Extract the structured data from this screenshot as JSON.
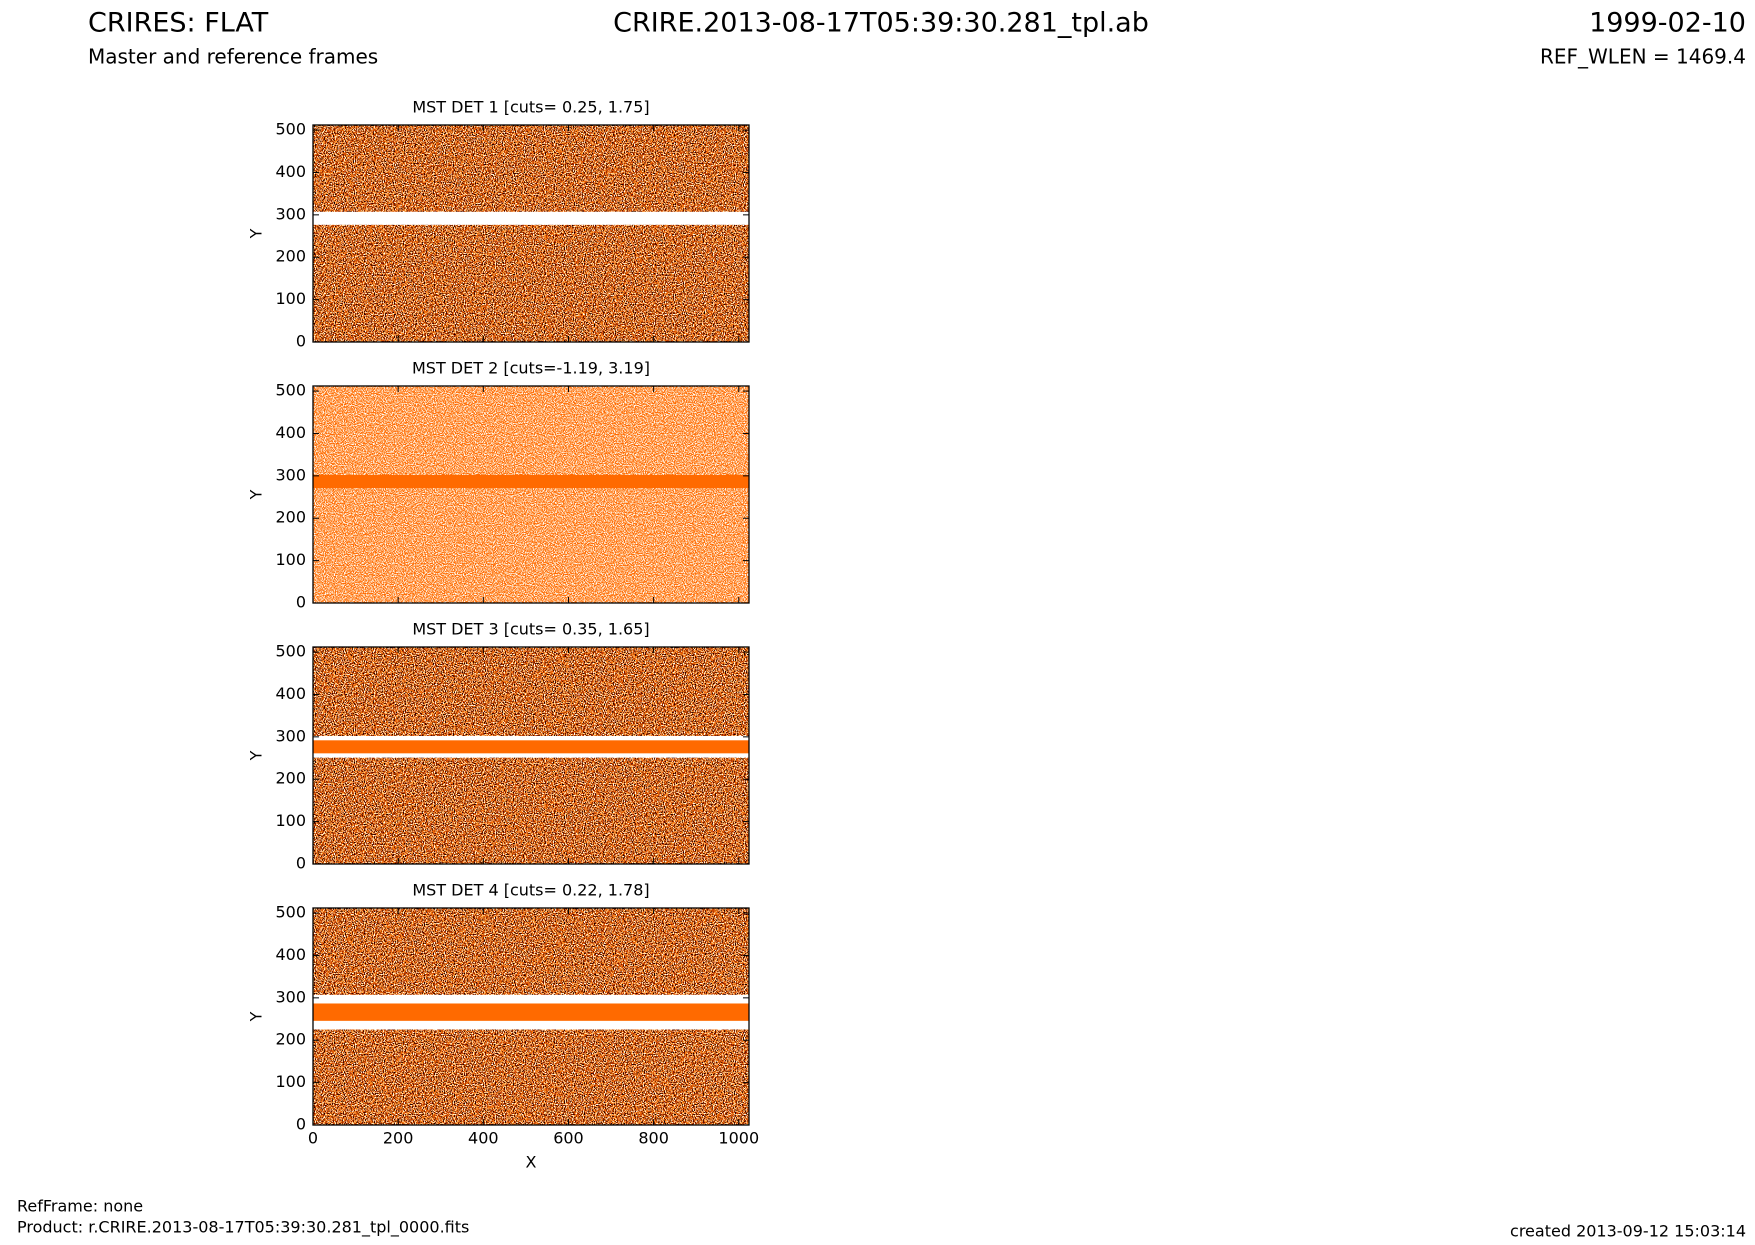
{
  "header": {
    "title": "CRIRES: FLAT",
    "subtitle": "Master and reference frames",
    "file": "CRIRE.2013-08-17T05:39:30.281_tpl.ab",
    "date": "1999-02-10",
    "ref_wlen": "REF_WLEN = 1469.4"
  },
  "chart_data": [
    {
      "type": "heatmap",
      "title": "MST DET 1 [cuts= 0.25, 1.75]",
      "y_label": "Y",
      "xlim": [
        0,
        1024
      ],
      "ylim": [
        0,
        512
      ],
      "xticks": [
        0,
        200,
        400,
        600,
        800,
        1000
      ],
      "yticks": [
        0,
        100,
        200,
        300,
        400,
        500
      ]
    },
    {
      "type": "heatmap",
      "title": "MST DET 2 [cuts=-1.19, 3.19]",
      "y_label": "Y",
      "xlim": [
        0,
        1024
      ],
      "ylim": [
        0,
        512
      ],
      "xticks": [
        0,
        200,
        400,
        600,
        800,
        1000
      ],
      "yticks": [
        0,
        100,
        200,
        300,
        400,
        500
      ]
    },
    {
      "type": "heatmap",
      "title": "MST DET 3 [cuts= 0.35, 1.65]",
      "y_label": "Y",
      "xlim": [
        0,
        1024
      ],
      "ylim": [
        0,
        512
      ],
      "xticks": [
        0,
        200,
        400,
        600,
        800,
        1000
      ],
      "yticks": [
        0,
        100,
        200,
        300,
        400,
        500
      ]
    },
    {
      "type": "heatmap",
      "title": "MST DET 4 [cuts= 0.22, 1.78]",
      "y_label": "Y",
      "x_label": "X",
      "xlim": [
        0,
        1024
      ],
      "ylim": [
        0,
        512
      ],
      "xticks": [
        0,
        200,
        400,
        600,
        800,
        1000
      ],
      "yticks": [
        0,
        100,
        200,
        300,
        400,
        500
      ]
    }
  ],
  "footer": {
    "ref_frame": "RefFrame: none",
    "product": "Product: r.CRIRE.2013-08-17T05:39:30.281_tpl_0000.fits",
    "created": "created 2013-09-12 15:03:14"
  }
}
